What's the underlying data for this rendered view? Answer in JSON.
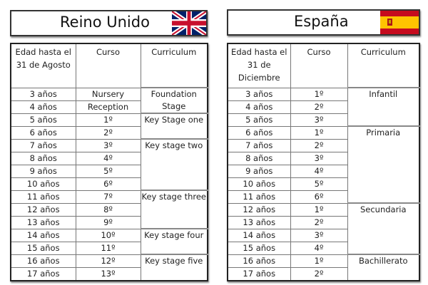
{
  "uk": {
    "title": "Reino Unido",
    "flag_icon": "uk-flag-icon",
    "headers": [
      "Edad hasta el 31 de Agosto",
      "Curso",
      "Curriculum"
    ],
    "rows": [
      [
        "3 años",
        "Nursery"
      ],
      [
        "4 años",
        "Reception"
      ],
      [
        "5 años",
        "1º"
      ],
      [
        "6 años",
        "2º"
      ],
      [
        "7 años",
        "3º"
      ],
      [
        "8 años",
        "4º"
      ],
      [
        "9 años",
        "5º"
      ],
      [
        "10 años",
        "6º"
      ],
      [
        "11 años",
        "7º"
      ],
      [
        "12 años",
        "8º"
      ],
      [
        "13 años",
        "9º"
      ],
      [
        "14 años",
        "10º"
      ],
      [
        "15 años",
        "11º"
      ],
      [
        "16 años",
        "12º"
      ],
      [
        "17 años",
        "13º"
      ]
    ],
    "curriculum": [
      {
        "label": "Foundation Stage",
        "rows": 2
      },
      {
        "label": "Key Stage one",
        "rows": 2
      },
      {
        "label": "Key stage two",
        "rows": 4
      },
      {
        "label": "Key stage three",
        "rows": 3
      },
      {
        "label": "Key stage four",
        "rows": 2
      },
      {
        "label": "Key stage five",
        "rows": 2
      }
    ]
  },
  "es": {
    "title": "España",
    "flag_icon": "spain-flag-icon",
    "headers": [
      "Edad hasta el 31 de Diciembre",
      "Curso",
      "Curriculum"
    ],
    "rows": [
      [
        "3 años",
        "1º"
      ],
      [
        "4 años",
        "2º"
      ],
      [
        "5 años",
        "3º"
      ],
      [
        "6 años",
        "1º"
      ],
      [
        "7 años",
        "2º"
      ],
      [
        "8 años",
        "3º"
      ],
      [
        "9 años",
        "4º"
      ],
      [
        "10 años",
        "5º"
      ],
      [
        "11 años",
        "6º"
      ],
      [
        "12 años",
        "1º"
      ],
      [
        "13 años",
        "2º"
      ],
      [
        "14 años",
        "3º"
      ],
      [
        "15 años",
        "4º"
      ],
      [
        "16 años",
        "1º"
      ],
      [
        "17 años",
        "2º"
      ]
    ],
    "curriculum": [
      {
        "label": "Infantil",
        "rows": 3
      },
      {
        "label": "Primaria",
        "rows": 6
      },
      {
        "label": "Secundaria",
        "rows": 4
      },
      {
        "label": "Bachillerato",
        "rows": 2
      }
    ]
  }
}
